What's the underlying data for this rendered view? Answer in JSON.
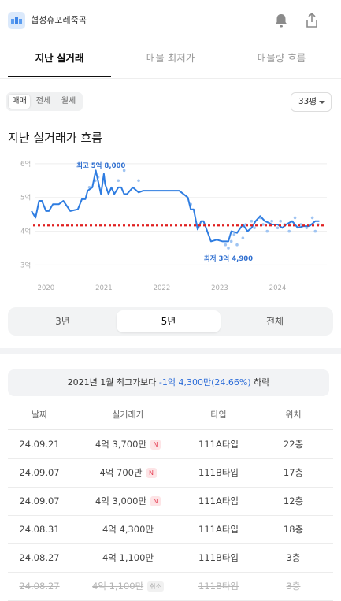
{
  "app": {
    "title": "협성휴포레죽곡"
  },
  "tabs": [
    {
      "label": "지난 실거래",
      "active": true
    },
    {
      "label": "매물 최저가",
      "active": false
    },
    {
      "label": "매물량 흐름",
      "active": false
    }
  ],
  "trade_type": {
    "options": [
      "매매",
      "전세",
      "월세"
    ],
    "selected": "매매"
  },
  "area_select": {
    "value": "33평"
  },
  "section_title": "지난 실거래가 흐름",
  "chart_data": {
    "type": "line",
    "y_unit": "억",
    "yticks": [
      "3억",
      "4억",
      "5억",
      "6억"
    ],
    "ylim": [
      2.8,
      6.3
    ],
    "xticks": [
      "2020",
      "2021",
      "2022",
      "2023",
      "2024"
    ],
    "xlim": [
      2019.75,
      2024.85
    ],
    "reference_line": {
      "value": 4.17,
      "color": "#e02020",
      "style": "dashed"
    },
    "line_color": "#2f7de1",
    "max_label": "최고 5억 8,000",
    "min_label": "최저 3억 4,900",
    "series": [
      {
        "x": [
          2019.75,
          2019.82,
          2019.88,
          2019.93,
          2020.0,
          2020.05,
          2020.12,
          2020.22,
          2020.3,
          2020.42,
          2020.55,
          2020.62,
          2020.68,
          2020.72,
          2020.8,
          2020.86,
          2020.95,
          2021.0,
          2021.02,
          2021.08,
          2021.13,
          2021.18,
          2021.25,
          2021.3,
          2021.35,
          2021.4,
          2021.5,
          2021.6,
          2021.68,
          2021.75,
          2021.82,
          2021.95,
          2022.1,
          2022.3,
          2022.45,
          2022.5,
          2022.55,
          2022.62,
          2022.68,
          2022.72,
          2022.85,
          2022.95,
          2023.05,
          2023.15,
          2023.2,
          2023.3,
          2023.4,
          2023.48,
          2023.55,
          2023.62,
          2023.7,
          2023.78,
          2023.85,
          2023.9,
          2024.0,
          2024.08,
          2024.15,
          2024.25,
          2024.35,
          2024.45,
          2024.55,
          2024.65,
          2024.72
        ],
        "y": [
          4.6,
          4.4,
          4.9,
          4.9,
          4.6,
          4.6,
          4.8,
          4.8,
          4.9,
          4.6,
          4.65,
          4.95,
          4.95,
          5.2,
          5.3,
          5.8,
          5.1,
          5.7,
          5.4,
          5.1,
          5.3,
          5.1,
          5.3,
          5.3,
          5.1,
          5.1,
          5.3,
          5.15,
          5.2,
          5.2,
          5.2,
          5.2,
          5.2,
          5.2,
          5.0,
          4.65,
          4.65,
          4.05,
          4.3,
          4.3,
          3.7,
          3.75,
          3.7,
          3.7,
          4.0,
          3.95,
          4.2,
          4.0,
          4.1,
          4.3,
          4.45,
          4.3,
          4.25,
          4.2,
          4.2,
          4.1,
          4.2,
          4.3,
          4.1,
          4.15,
          4.15,
          4.3,
          4.3
        ]
      }
    ],
    "scatter_points": {
      "x": [
        2020.75,
        2020.85,
        2020.9,
        2021.25,
        2021.35,
        2021.6,
        2022.5,
        2022.6,
        2023.1,
        2023.15,
        2023.2,
        2023.25,
        2023.3,
        2023.4,
        2023.45,
        2023.55,
        2023.6,
        2023.7,
        2023.75,
        2023.82,
        2023.9,
        2024.0,
        2024.05,
        2024.12,
        2024.2,
        2024.3,
        2024.4,
        2024.5,
        2024.6,
        2024.65,
        2024.7
      ],
      "y": [
        5.3,
        5.5,
        5.6,
        5.5,
        5.8,
        5.5,
        4.8,
        4.2,
        3.6,
        3.5,
        3.7,
        3.9,
        3.6,
        3.8,
        4.2,
        4.3,
        4.1,
        4.4,
        4.2,
        4.0,
        4.3,
        4.1,
        4.3,
        4.2,
        4.0,
        4.4,
        4.2,
        4.1,
        4.4,
        4.0,
        4.2
      ]
    }
  },
  "period": {
    "options": [
      "3년",
      "5년",
      "전체"
    ],
    "selected": "5년"
  },
  "summary": {
    "prefix": "2021년 1월 최고가보다 ",
    "highlight": "-1억 4,300만(24.66%)",
    "suffix": " 하락"
  },
  "table": {
    "headers": [
      "날짜",
      "실거래가",
      "타입",
      "위치"
    ],
    "rows": [
      {
        "date": "24.09.21",
        "price": "4억 3,700만",
        "badge": "N",
        "type": "111A타입",
        "floor": "22층"
      },
      {
        "date": "24.09.07",
        "price": "4억 700만",
        "badge": "N",
        "type": "111B타입",
        "floor": "17층"
      },
      {
        "date": "24.09.07",
        "price": "4억 3,000만",
        "badge": "N",
        "type": "111A타입",
        "floor": "12층"
      },
      {
        "date": "24.08.31",
        "price": "4억 4,300만",
        "badge": "",
        "type": "111A타입",
        "floor": "18층"
      },
      {
        "date": "24.08.27",
        "price": "4억 1,100만",
        "badge": "",
        "type": "111B타입",
        "floor": "3층"
      },
      {
        "date": "24.08.27",
        "price": "4억 1,100만",
        "badge": "취소",
        "type": "111B타입",
        "floor": "3층",
        "canceled": true
      }
    ]
  }
}
